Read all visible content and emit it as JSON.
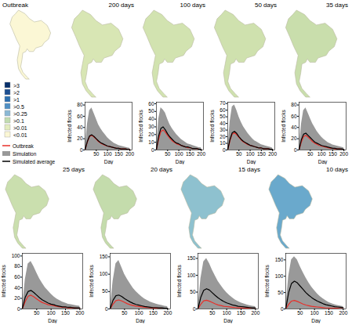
{
  "chart_data": [
    {
      "type": "map",
      "title": "Outbreak",
      "color": "#fbf7d5",
      "categories": [
        ">3",
        ">2",
        ">1",
        ">0.5",
        ">0.25",
        ">0.1",
        ">0.01",
        "<0.01"
      ],
      "colors": [
        "#08306b",
        "#1d4f91",
        "#2c6fb0",
        "#4f8fc4",
        "#8ab8d4",
        "#c2dcb0",
        "#e3ecbf",
        "#fbf7d5"
      ]
    },
    {
      "type": "map",
      "title": "200 days",
      "color": "#d8e6b4"
    },
    {
      "type": "map",
      "title": "100 days",
      "color": "#d2e3b0"
    },
    {
      "type": "map",
      "title": "50 days",
      "color": "#cfe1ae"
    },
    {
      "type": "map",
      "title": "35 days",
      "color": "#c9deac"
    },
    {
      "type": "map",
      "title": "25 days",
      "color": "#cadfae"
    },
    {
      "type": "map",
      "title": "20 days",
      "color": "#c4dcac"
    },
    {
      "type": "map",
      "title": "15 days",
      "color": "#8ec1cf"
    },
    {
      "type": "map",
      "title": "10 days",
      "color": "#6aa9cc"
    },
    {
      "type": "line",
      "xlabel": "Day",
      "ylabel": "Infected flocks",
      "legend": "left",
      "x": [
        0,
        10,
        20,
        30,
        40,
        50,
        60,
        70,
        80,
        90,
        100,
        110,
        120,
        130,
        140,
        150,
        160,
        170,
        180,
        190,
        200
      ],
      "xlim": [
        0,
        210
      ],
      "xticks": [
        50,
        100,
        150,
        200
      ],
      "ylim": [
        0,
        85
      ],
      "yticks": [
        0,
        20,
        40,
        60,
        80
      ],
      "series": [
        {
          "name": "Outbreak",
          "type": "line",
          "color": "#e8302a",
          "values": [
            0,
            14,
            24,
            26,
            23,
            19,
            15,
            12,
            10,
            8,
            7,
            6,
            5,
            4,
            3,
            3,
            2,
            2,
            2,
            1,
            1
          ]
        },
        {
          "name": "Simulation",
          "type": "area",
          "color": "#999999",
          "values": [
            0,
            45,
            70,
            75,
            65,
            55,
            45,
            38,
            32,
            27,
            22,
            18,
            15,
            12,
            10,
            8,
            7,
            6,
            5,
            4,
            3
          ]
        },
        {
          "name": "Simulated average",
          "type": "line",
          "color": "#000000",
          "values": [
            0,
            15,
            25,
            27,
            24,
            20,
            16,
            13,
            11,
            9,
            7,
            6,
            5,
            4,
            3,
            3,
            2,
            2,
            2,
            1,
            1
          ]
        }
      ]
    },
    {
      "type": "line",
      "xlabel": "Day",
      "ylabel": "Infected flocks",
      "x": [
        0,
        10,
        20,
        30,
        40,
        50,
        60,
        70,
        80,
        90,
        100,
        110,
        120,
        130,
        140,
        150,
        160,
        170,
        180,
        190,
        200
      ],
      "xlim": [
        0,
        210
      ],
      "xticks": [
        50,
        100,
        150,
        200
      ],
      "ylim": [
        0,
        62
      ],
      "yticks": [
        0,
        10,
        20,
        30,
        40,
        50,
        60
      ],
      "series": [
        {
          "name": "Outbreak",
          "type": "line",
          "color": "#e8302a",
          "values": [
            0,
            14,
            24,
            26,
            23,
            19,
            15,
            12,
            10,
            8,
            7,
            6,
            5,
            4,
            3,
            3,
            2,
            2,
            2,
            1,
            1
          ]
        },
        {
          "name": "Simulation",
          "type": "area",
          "color": "#999999",
          "values": [
            0,
            40,
            55,
            52,
            48,
            40,
            33,
            28,
            24,
            20,
            17,
            14,
            12,
            10,
            8,
            7,
            6,
            5,
            4,
            3,
            3
          ]
        },
        {
          "name": "Simulated average",
          "type": "line",
          "color": "#000000",
          "values": [
            0,
            18,
            28,
            30,
            26,
            21,
            17,
            14,
            11,
            9,
            8,
            6,
            5,
            4,
            4,
            3,
            2,
            2,
            2,
            1,
            1
          ]
        }
      ]
    },
    {
      "type": "line",
      "xlabel": "Day",
      "ylabel": "Infected flocks",
      "x": [
        0,
        10,
        20,
        30,
        40,
        50,
        60,
        70,
        80,
        90,
        100,
        110,
        120,
        130,
        140,
        150,
        160,
        170,
        180,
        190,
        200
      ],
      "xlim": [
        0,
        210
      ],
      "xticks": [
        50,
        100,
        150,
        200
      ],
      "ylim": [
        0,
        72
      ],
      "yticks": [
        0,
        10,
        20,
        30,
        40,
        50,
        60,
        70
      ],
      "series": [
        {
          "name": "Outbreak",
          "type": "line",
          "color": "#e8302a",
          "values": [
            0,
            14,
            24,
            26,
            23,
            19,
            15,
            12,
            10,
            8,
            7,
            6,
            5,
            4,
            3,
            3,
            2,
            2,
            2,
            1,
            1
          ]
        },
        {
          "name": "Simulation",
          "type": "area",
          "color": "#999999",
          "values": [
            0,
            42,
            65,
            68,
            60,
            50,
            42,
            35,
            30,
            25,
            21,
            17,
            14,
            12,
            10,
            8,
            7,
            6,
            5,
            4,
            3
          ]
        },
        {
          "name": "Simulated average",
          "type": "line",
          "color": "#000000",
          "values": [
            0,
            16,
            26,
            28,
            25,
            20,
            16,
            13,
            11,
            9,
            7,
            6,
            5,
            4,
            3,
            3,
            2,
            2,
            2,
            1,
            1
          ]
        }
      ]
    },
    {
      "type": "line",
      "xlabel": "Day",
      "ylabel": "Infected flocks",
      "x": [
        0,
        10,
        20,
        30,
        40,
        50,
        60,
        70,
        80,
        90,
        100,
        110,
        120,
        130,
        140,
        150,
        160,
        170,
        180,
        190,
        200
      ],
      "xlim": [
        0,
        210
      ],
      "xticks": [
        50,
        100,
        150,
        200
      ],
      "ylim": [
        0,
        85
      ],
      "yticks": [
        0,
        20,
        40,
        60,
        80
      ],
      "series": [
        {
          "name": "Outbreak",
          "type": "line",
          "color": "#e8302a",
          "values": [
            0,
            14,
            24,
            26,
            23,
            19,
            15,
            12,
            10,
            8,
            7,
            6,
            5,
            4,
            3,
            3,
            2,
            2,
            2,
            1,
            1
          ]
        },
        {
          "name": "Simulation",
          "type": "area",
          "color": "#999999",
          "values": [
            0,
            45,
            70,
            75,
            66,
            56,
            47,
            40,
            33,
            28,
            23,
            19,
            16,
            13,
            11,
            9,
            8,
            7,
            6,
            5,
            4
          ]
        },
        {
          "name": "Simulated average",
          "type": "line",
          "color": "#000000",
          "values": [
            0,
            18,
            28,
            30,
            26,
            22,
            18,
            14,
            12,
            10,
            8,
            7,
            6,
            5,
            4,
            3,
            3,
            2,
            2,
            2,
            1
          ]
        }
      ]
    },
    {
      "type": "line",
      "xlabel": "Day",
      "ylabel": "Infected flocks",
      "x": [
        0,
        10,
        20,
        30,
        40,
        50,
        60,
        70,
        80,
        90,
        100,
        110,
        120,
        130,
        140,
        150,
        160,
        170,
        180,
        190,
        200
      ],
      "xlim": [
        0,
        210
      ],
      "xticks": [
        50,
        100,
        150,
        200
      ],
      "ylim": [
        0,
        105
      ],
      "yticks": [
        0,
        20,
        40,
        60,
        80,
        100
      ],
      "series": [
        {
          "name": "Outbreak",
          "type": "line",
          "color": "#e8302a",
          "values": [
            0,
            14,
            24,
            26,
            23,
            19,
            15,
            12,
            10,
            8,
            7,
            6,
            5,
            4,
            3,
            3,
            2,
            2,
            2,
            1,
            1
          ]
        },
        {
          "name": "Simulation",
          "type": "area",
          "color": "#999999",
          "values": [
            0,
            55,
            85,
            90,
            80,
            68,
            57,
            48,
            40,
            34,
            28,
            23,
            19,
            16,
            13,
            11,
            9,
            8,
            7,
            6,
            5
          ]
        },
        {
          "name": "Simulated average",
          "type": "line",
          "color": "#000000",
          "values": [
            0,
            22,
            33,
            35,
            31,
            26,
            21,
            17,
            14,
            11,
            9,
            8,
            6,
            5,
            4,
            4,
            3,
            3,
            2,
            2,
            2
          ]
        }
      ]
    },
    {
      "type": "line",
      "xlabel": "Day",
      "ylabel": "Infected flocks",
      "x": [
        0,
        10,
        20,
        30,
        40,
        50,
        60,
        70,
        80,
        90,
        100,
        110,
        120,
        130,
        140,
        150,
        160,
        170,
        180,
        190,
        200
      ],
      "xlim": [
        0,
        210
      ],
      "xticks": [
        50,
        100,
        150,
        200
      ],
      "ylim": [
        0,
        160
      ],
      "yticks": [
        0,
        50,
        100,
        150
      ],
      "series": [
        {
          "name": "Outbreak",
          "type": "line",
          "color": "#e8302a",
          "values": [
            0,
            14,
            24,
            26,
            23,
            19,
            15,
            12,
            10,
            8,
            7,
            6,
            5,
            4,
            3,
            3,
            2,
            2,
            2,
            1,
            1
          ]
        },
        {
          "name": "Simulation",
          "type": "area",
          "color": "#999999",
          "values": [
            0,
            80,
            130,
            140,
            120,
            100,
            85,
            72,
            60,
            50,
            42,
            35,
            29,
            24,
            20,
            17,
            14,
            12,
            10,
            8,
            7
          ]
        },
        {
          "name": "Simulated average",
          "type": "line",
          "color": "#000000",
          "values": [
            0,
            25,
            38,
            40,
            36,
            30,
            25,
            20,
            16,
            13,
            11,
            9,
            7,
            6,
            5,
            4,
            4,
            3,
            3,
            2,
            2
          ]
        }
      ]
    },
    {
      "type": "line",
      "xlabel": "Day",
      "ylabel": "Infected flocks",
      "x": [
        0,
        10,
        20,
        30,
        40,
        50,
        60,
        70,
        80,
        90,
        100,
        110,
        120,
        130,
        140,
        150,
        160,
        170,
        180,
        190,
        200
      ],
      "xlim": [
        0,
        210
      ],
      "xticks": [
        50,
        100,
        150,
        200
      ],
      "ylim": [
        0,
        165
      ],
      "yticks": [
        0,
        50,
        100,
        150
      ],
      "series": [
        {
          "name": "Outbreak",
          "type": "line",
          "color": "#e8302a",
          "values": [
            0,
            14,
            24,
            26,
            23,
            19,
            15,
            12,
            10,
            8,
            7,
            6,
            5,
            4,
            3,
            3,
            2,
            2,
            2,
            1,
            1
          ]
        },
        {
          "name": "Simulation",
          "type": "area",
          "color": "#999999",
          "values": [
            0,
            90,
            140,
            150,
            135,
            115,
            98,
            82,
            70,
            58,
            48,
            40,
            33,
            27,
            22,
            18,
            15,
            12,
            10,
            8,
            7
          ]
        },
        {
          "name": "Simulated average",
          "type": "line",
          "color": "#000000",
          "values": [
            0,
            35,
            55,
            60,
            56,
            48,
            40,
            33,
            27,
            22,
            18,
            15,
            12,
            10,
            8,
            7,
            6,
            5,
            4,
            3,
            3
          ]
        }
      ]
    },
    {
      "type": "line",
      "xlabel": "Day",
      "ylabel": "Infected flocks",
      "x": [
        0,
        10,
        20,
        30,
        40,
        50,
        60,
        70,
        80,
        90,
        100,
        110,
        120,
        130,
        140,
        150,
        160,
        170,
        180,
        190,
        200
      ],
      "xlim": [
        0,
        210
      ],
      "xticks": [
        50,
        100,
        150,
        200
      ],
      "ylim": [
        0,
        170
      ],
      "yticks": [
        0,
        50,
        100,
        150
      ],
      "series": [
        {
          "name": "Outbreak",
          "type": "line",
          "color": "#e8302a",
          "values": [
            0,
            14,
            24,
            26,
            23,
            19,
            15,
            12,
            10,
            8,
            7,
            6,
            5,
            4,
            3,
            3,
            2,
            2,
            2,
            1,
            1
          ]
        },
        {
          "name": "Simulation",
          "type": "area",
          "color": "#999999",
          "values": [
            0,
            100,
            150,
            160,
            150,
            130,
            112,
            95,
            80,
            67,
            56,
            46,
            38,
            31,
            25,
            20,
            16,
            13,
            11,
            9,
            7
          ]
        },
        {
          "name": "Simulated average",
          "type": "line",
          "color": "#000000",
          "values": [
            0,
            50,
            78,
            85,
            80,
            70,
            60,
            50,
            42,
            35,
            29,
            24,
            20,
            16,
            13,
            11,
            9,
            7,
            6,
            5,
            4
          ]
        }
      ]
    }
  ]
}
